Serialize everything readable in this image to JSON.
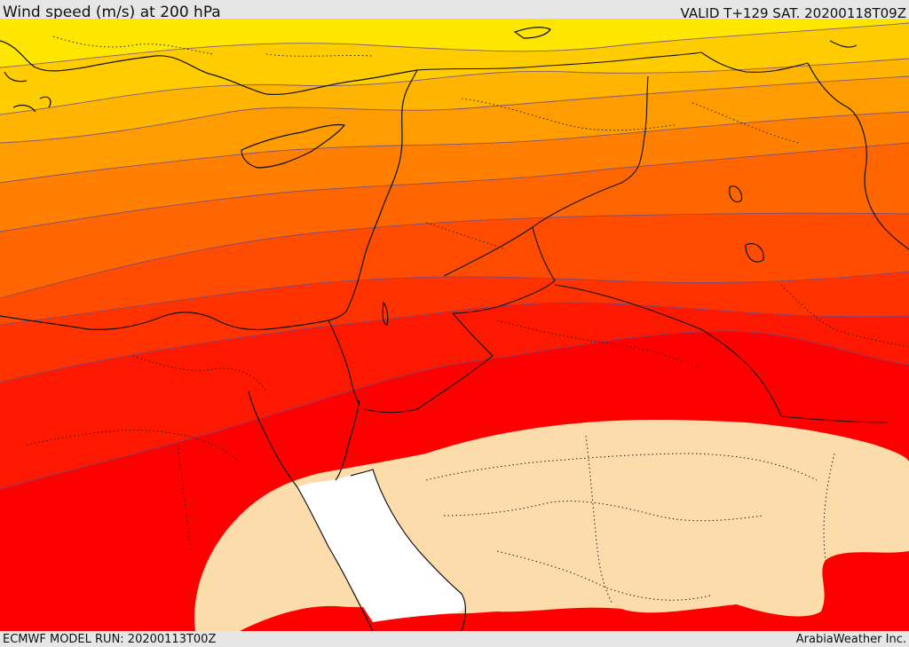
{
  "header": {
    "title": "Wind speed (m/s) at 200 hPa",
    "valid_time": "VALID T+129 SAT. 20200118T09Z"
  },
  "footer": {
    "model_run": "ECMWF MODEL RUN: 20200113T00Z",
    "credit": "ArabiaWeather Inc."
  },
  "map": {
    "variable": "wind speed",
    "units": "m/s",
    "pressure_level_hpa": 200,
    "palette": {
      "band_1": "#ffe600",
      "band_2": "#ffcc00",
      "band_3": "#ffb400",
      "band_4": "#ff9c00",
      "band_5": "#ff8000",
      "band_6": "#ff6600",
      "band_7": "#ff4c00",
      "band_8": "#ff3200",
      "band_9": "#ff1800",
      "band_10": "#ff0000",
      "low_wind": "#fcdcaa",
      "calm": "#ffffff"
    }
  }
}
